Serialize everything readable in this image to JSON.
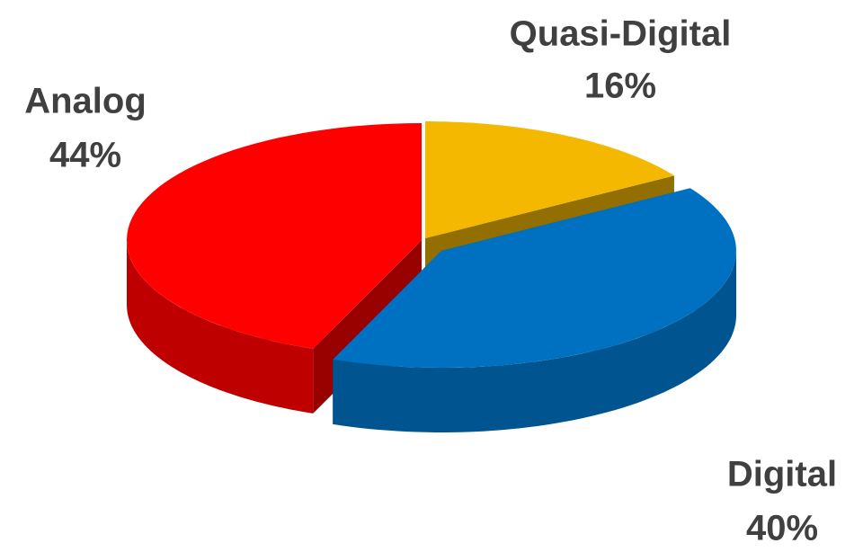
{
  "chart_data": {
    "type": "pie3d",
    "categories": [
      "Quasi-Digital",
      "Digital",
      "Analog"
    ],
    "values": [
      16,
      40,
      44
    ],
    "value_labels": [
      "16%",
      "40%",
      "44%"
    ],
    "colors": [
      "#f5b800",
      "#0070c0",
      "#ff0000"
    ]
  }
}
